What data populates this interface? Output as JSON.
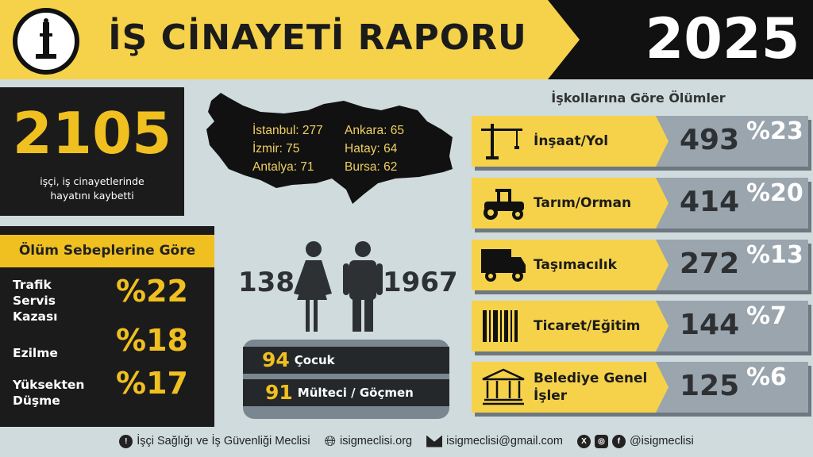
{
  "header": {
    "title": "İŞ CİNAYETİ RAPORU",
    "year": "2025"
  },
  "total": {
    "value": "2105",
    "caption_line1": "işçi, iş cinayetlerinde",
    "caption_line2": "hayatını kaybetti"
  },
  "causes": {
    "title": "Ölüm Sebeplerine Göre",
    "items": [
      {
        "label": "Trafik Servis Kazası",
        "pct": "%22"
      },
      {
        "label": "Ezilme",
        "pct": "%18"
      },
      {
        "label": "Yüksekten Düşme",
        "pct": "%17"
      }
    ]
  },
  "cities": [
    {
      "text": "İstanbul: 277"
    },
    {
      "text": "Ankara: 65"
    },
    {
      "text": "İzmir: 75"
    },
    {
      "text": "Hatay: 64"
    },
    {
      "text": "Antalya: 71"
    },
    {
      "text": "Bursa: 62"
    }
  ],
  "gender": {
    "women": "138",
    "men": "1967"
  },
  "groups": [
    {
      "count": "94",
      "label": "Çocuk"
    },
    {
      "count": "91",
      "label": "Mülteci / Göçmen"
    }
  ],
  "sectors": {
    "title": "İşkollarına Göre Ölümler",
    "items": [
      {
        "label": "İnşaat/Yol",
        "count": "493",
        "pct": "%23",
        "icon": "crane-icon"
      },
      {
        "label": "Tarım/Orman",
        "count": "414",
        "pct": "%20",
        "icon": "tractor-icon"
      },
      {
        "label": "Taşımacılık",
        "count": "272",
        "pct": "%13",
        "icon": "truck-icon"
      },
      {
        "label": "Ticaret/Eğitim",
        "count": "144",
        "pct": "%7",
        "icon": "barcode-icon"
      },
      {
        "label": "Belediye Genel İşler",
        "count": "125",
        "pct": "%6",
        "icon": "building-icon"
      }
    ]
  },
  "footer": {
    "org": "İşçi Sağlığı ve İş Güvenliği Meclisi",
    "website": "isigmeclisi.org",
    "email": "isigmeclisi@gmail.com",
    "social": "@isigmeclisi"
  },
  "colors": {
    "yellow": "#f5d24a",
    "gold": "#f0c020",
    "dark": "#1b1b1b",
    "background": "#cfdbdc",
    "gray": "#9aa5ae"
  }
}
